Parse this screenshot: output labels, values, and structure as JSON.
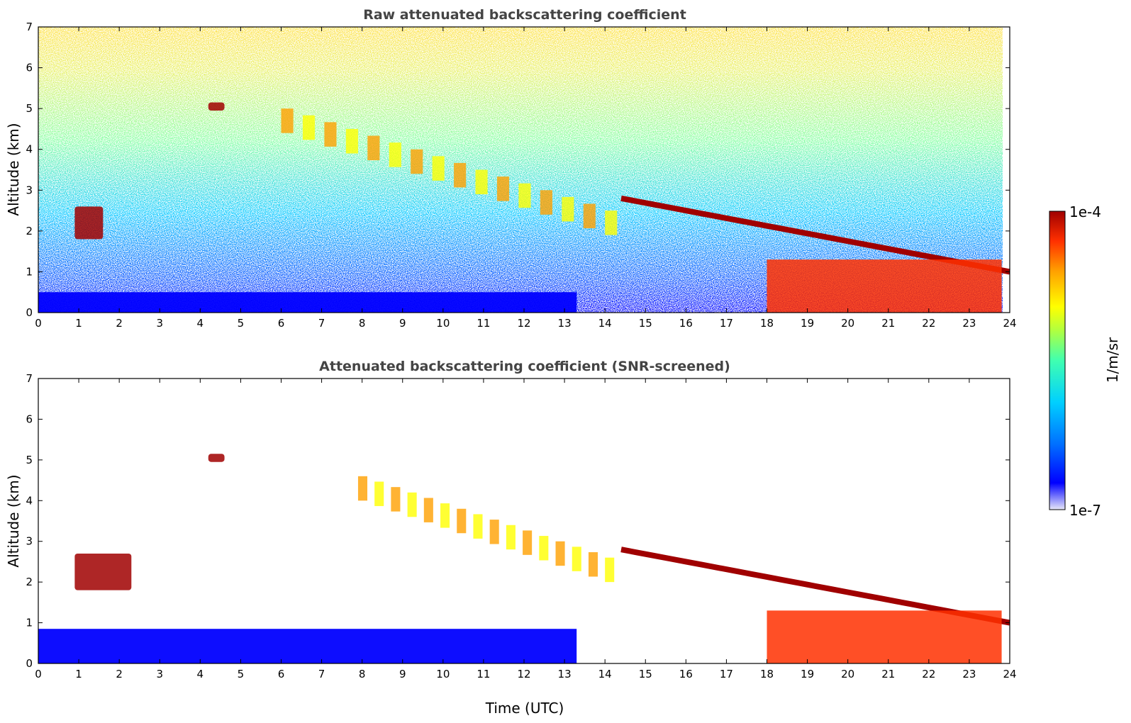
{
  "chart_data": [
    {
      "type": "heatmap",
      "title": "Raw attenuated backscattering coefficient",
      "xlabel": "",
      "ylabel": "Altitude (km)",
      "xlim": [
        0,
        24
      ],
      "ylim": [
        0,
        7
      ],
      "x_ticks": [
        "0",
        "1",
        "2",
        "3",
        "4",
        "5",
        "6",
        "7",
        "8",
        "9",
        "10",
        "11",
        "12",
        "13",
        "14",
        "15",
        "16",
        "17",
        "18",
        "19",
        "20",
        "21",
        "22",
        "23",
        "24"
      ],
      "y_ticks": [
        "0",
        "1",
        "2",
        "3",
        "4",
        "5",
        "6",
        "7"
      ],
      "features": [
        {
          "kind": "cloud",
          "x": [
            0.9,
            1.6
          ],
          "y": [
            1.8,
            2.6
          ],
          "level": 0.95
        },
        {
          "kind": "cloud",
          "x": [
            4.2,
            4.6
          ],
          "y": [
            4.95,
            5.15
          ],
          "level": 1.0
        },
        {
          "kind": "virga",
          "x": [
            6,
            14
          ],
          "y_top": [
            5.0,
            2.5
          ],
          "level": 0.8
        },
        {
          "kind": "cloud",
          "x": [
            14.4,
            24
          ],
          "y_top": [
            2.8,
            1.0
          ],
          "level": 1.0
        },
        {
          "kind": "boundary_layer",
          "x": [
            0,
            13.3
          ],
          "y": [
            0,
            0.5
          ],
          "level": 0.15
        },
        {
          "kind": "precip",
          "x": [
            18,
            23.8
          ],
          "y": [
            0,
            1.3
          ],
          "level": 0.85
        }
      ]
    },
    {
      "type": "heatmap",
      "title": "Attenuated backscattering coefficient (SNR-screened)",
      "xlabel": "Time (UTC)",
      "ylabel": "Altitude (km)",
      "xlim": [
        0,
        24
      ],
      "ylim": [
        0,
        7
      ],
      "x_ticks": [
        "0",
        "1",
        "2",
        "3",
        "4",
        "5",
        "6",
        "7",
        "8",
        "9",
        "10",
        "11",
        "12",
        "13",
        "14",
        "15",
        "16",
        "17",
        "18",
        "19",
        "20",
        "21",
        "22",
        "23",
        "24"
      ],
      "y_ticks": [
        "0",
        "1",
        "2",
        "3",
        "4",
        "5",
        "6",
        "7"
      ],
      "features": [
        {
          "kind": "cloud",
          "x": [
            0.9,
            2.3
          ],
          "y": [
            1.8,
            2.7
          ],
          "level": 1.0
        },
        {
          "kind": "cloud",
          "x": [
            4.2,
            4.6
          ],
          "y": [
            4.95,
            5.15
          ],
          "level": 1.0
        },
        {
          "kind": "virga",
          "x": [
            7.9,
            14
          ],
          "y_top": [
            4.6,
            2.6
          ],
          "level": 0.75
        },
        {
          "kind": "cloud",
          "x": [
            14.4,
            24
          ],
          "y_top": [
            2.8,
            1.0
          ],
          "level": 1.0
        },
        {
          "kind": "boundary_layer",
          "x": [
            0,
            13.3
          ],
          "y": [
            0,
            0.85
          ],
          "level": 0.1
        },
        {
          "kind": "precip",
          "x": [
            18,
            23.8
          ],
          "y": [
            0,
            1.3
          ],
          "level": 0.85
        }
      ]
    }
  ],
  "colorbar": {
    "max_label": "1e-4",
    "min_label": "1e-7",
    "unit_label": "1/m/sr",
    "colormap": [
      "#e8e8f8",
      "#0000ff",
      "#0070ff",
      "#00d0ff",
      "#40ffb0",
      "#b0ff40",
      "#ffff00",
      "#ffa000",
      "#ff3000",
      "#a00000"
    ]
  }
}
